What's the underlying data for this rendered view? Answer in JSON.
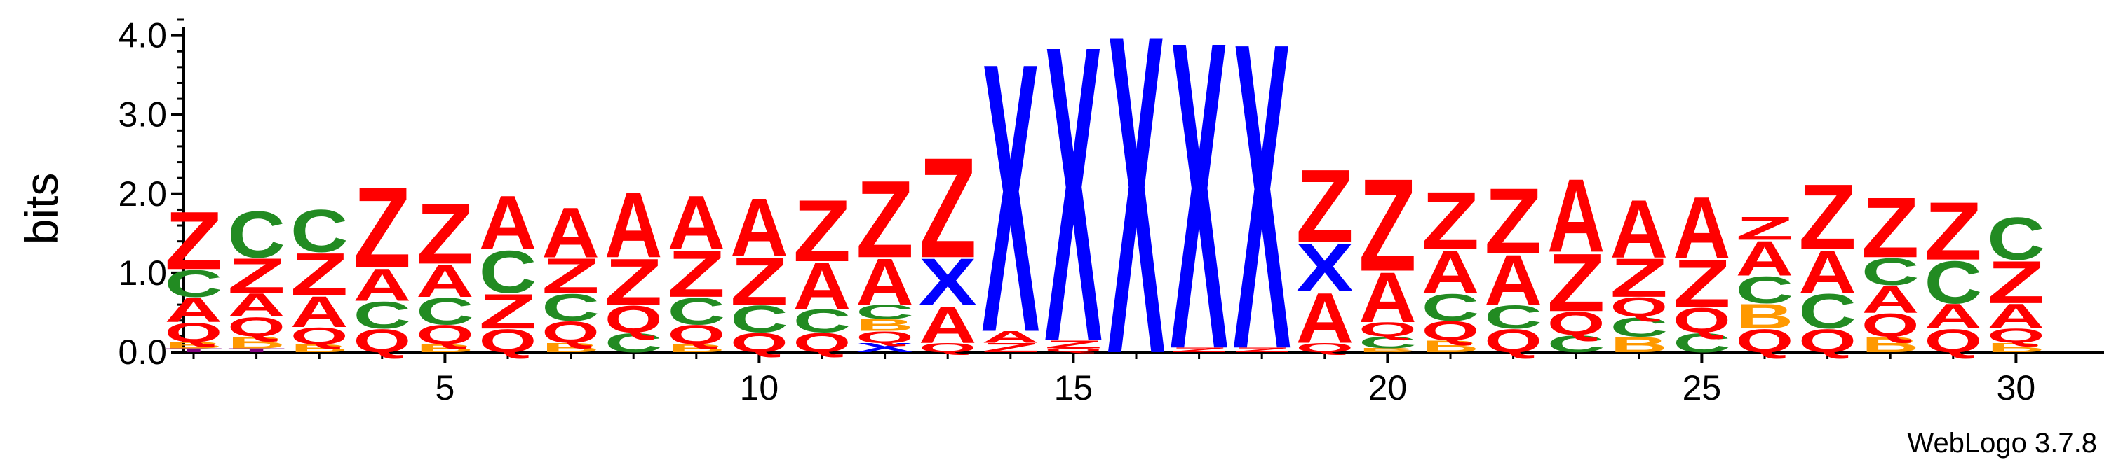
{
  "chart_data": {
    "type": "sequence-logo",
    "ylabel": "bits",
    "ylim": [
      0,
      4.2
    ],
    "y_ticks": [
      "0.0",
      "1.0",
      "2.0",
      "3.0",
      "4.0"
    ],
    "x_tick_positions": [
      5,
      10,
      15,
      20,
      25,
      30
    ],
    "x_tick_labels": [
      "5",
      "10",
      "15",
      "20",
      "25",
      "30"
    ],
    "footer": "WebLogo 3.7.8",
    "colors": {
      "Z": "#ff0000",
      "A": "#ff0000",
      "Q": "#ff0000",
      "C": "#228b22",
      "X": "#0000ff",
      "B": "#ff9900",
      "T": "#800080"
    },
    "positions": [
      {
        "pos": 1,
        "stack": [
          {
            "l": "T",
            "h": 0.05
          },
          {
            "l": "B",
            "h": 0.08
          },
          {
            "l": "Q",
            "h": 0.25
          },
          {
            "l": "A",
            "h": 0.32
          },
          {
            "l": "C",
            "h": 0.35
          },
          {
            "l": "Z",
            "h": 0.75
          }
        ]
      },
      {
        "pos": 2,
        "stack": [
          {
            "l": "T",
            "h": 0.05
          },
          {
            "l": "B",
            "h": 0.15
          },
          {
            "l": "Q",
            "h": 0.25
          },
          {
            "l": "A",
            "h": 0.3
          },
          {
            "l": "Z",
            "h": 0.45
          },
          {
            "l": "C",
            "h": 0.6
          }
        ]
      },
      {
        "pos": 3,
        "stack": [
          {
            "l": "B",
            "h": 0.1
          },
          {
            "l": "Q",
            "h": 0.22
          },
          {
            "l": "A",
            "h": 0.4
          },
          {
            "l": "Z",
            "h": 0.55
          },
          {
            "l": "C",
            "h": 0.55
          }
        ]
      },
      {
        "pos": 4,
        "stack": [
          {
            "l": "Q",
            "h": 0.3
          },
          {
            "l": "C",
            "h": 0.35
          },
          {
            "l": "A",
            "h": 0.42
          },
          {
            "l": "Z",
            "h": 1.05
          }
        ]
      },
      {
        "pos": 5,
        "stack": [
          {
            "l": "B",
            "h": 0.1
          },
          {
            "l": "Q",
            "h": 0.25
          },
          {
            "l": "C",
            "h": 0.35
          },
          {
            "l": "A",
            "h": 0.42
          },
          {
            "l": "Z",
            "h": 0.78
          }
        ]
      },
      {
        "pos": 6,
        "stack": [
          {
            "l": "Q",
            "h": 0.3
          },
          {
            "l": "Z",
            "h": 0.45
          },
          {
            "l": "C",
            "h": 0.55
          },
          {
            "l": "A",
            "h": 0.7
          }
        ]
      },
      {
        "pos": 7,
        "stack": [
          {
            "l": "B",
            "h": 0.12
          },
          {
            "l": "Q",
            "h": 0.28
          },
          {
            "l": "C",
            "h": 0.35
          },
          {
            "l": "Z",
            "h": 0.45
          },
          {
            "l": "A",
            "h": 0.65
          }
        ]
      },
      {
        "pos": 8,
        "stack": [
          {
            "l": "C",
            "h": 0.25
          },
          {
            "l": "Q",
            "h": 0.35
          },
          {
            "l": "Z",
            "h": 0.6
          },
          {
            "l": "A",
            "h": 0.85
          }
        ]
      },
      {
        "pos": 9,
        "stack": [
          {
            "l": "B",
            "h": 0.1
          },
          {
            "l": "Q",
            "h": 0.25
          },
          {
            "l": "C",
            "h": 0.35
          },
          {
            "l": "Z",
            "h": 0.6
          },
          {
            "l": "A",
            "h": 0.7
          }
        ]
      },
      {
        "pos": 10,
        "stack": [
          {
            "l": "Q",
            "h": 0.25
          },
          {
            "l": "C",
            "h": 0.35
          },
          {
            "l": "Z",
            "h": 0.62
          },
          {
            "l": "A",
            "h": 0.75
          }
        ]
      },
      {
        "pos": 11,
        "stack": [
          {
            "l": "Q",
            "h": 0.25
          },
          {
            "l": "C",
            "h": 0.3
          },
          {
            "l": "A",
            "h": 0.6
          },
          {
            "l": "Z",
            "h": 0.8
          }
        ]
      },
      {
        "pos": 12,
        "stack": [
          {
            "l": "X",
            "h": 0.12
          },
          {
            "l": "Q",
            "h": 0.15
          },
          {
            "l": "B",
            "h": 0.15
          },
          {
            "l": "C",
            "h": 0.18
          },
          {
            "l": "A",
            "h": 0.6
          },
          {
            "l": "Z",
            "h": 1.0
          }
        ]
      },
      {
        "pos": 13,
        "stack": [
          {
            "l": "Q",
            "h": 0.12
          },
          {
            "l": "A",
            "h": 0.48
          },
          {
            "l": "X",
            "h": 0.6
          },
          {
            "l": "Z",
            "h": 1.3
          }
        ]
      },
      {
        "pos": 14,
        "stack": [
          {
            "l": "Z",
            "h": 0.12
          },
          {
            "l": "A",
            "h": 0.15
          },
          {
            "l": "X",
            "h": 3.5
          }
        ]
      },
      {
        "pos": 15,
        "stack": [
          {
            "l": "Q",
            "h": 0.05
          },
          {
            "l": "Z",
            "h": 0.1
          },
          {
            "l": "X",
            "h": 3.85
          }
        ]
      },
      {
        "pos": 16,
        "stack": [
          {
            "l": "X",
            "h": 4.15
          }
        ]
      },
      {
        "pos": 17,
        "stack": [
          {
            "l": "Z",
            "h": 0.06
          },
          {
            "l": "X",
            "h": 4.0
          }
        ]
      },
      {
        "pos": 18,
        "stack": [
          {
            "l": "Z",
            "h": 0.06
          },
          {
            "l": "X",
            "h": 3.98
          }
        ]
      },
      {
        "pos": 19,
        "stack": [
          {
            "l": "Q",
            "h": 0.12
          },
          {
            "l": "A",
            "h": 0.65
          },
          {
            "l": "X",
            "h": 0.62
          },
          {
            "l": "Z",
            "h": 0.95
          }
        ]
      },
      {
        "pos": 20,
        "stack": [
          {
            "l": "B",
            "h": 0.05
          },
          {
            "l": "C",
            "h": 0.15
          },
          {
            "l": "Q",
            "h": 0.18
          },
          {
            "l": "A",
            "h": 0.65
          },
          {
            "l": "Z",
            "h": 1.2
          }
        ]
      },
      {
        "pos": 21,
        "stack": [
          {
            "l": "B",
            "h": 0.15
          },
          {
            "l": "Q",
            "h": 0.25
          },
          {
            "l": "C",
            "h": 0.35
          },
          {
            "l": "A",
            "h": 0.55
          },
          {
            "l": "Z",
            "h": 0.75
          }
        ]
      },
      {
        "pos": 22,
        "stack": [
          {
            "l": "Q",
            "h": 0.3
          },
          {
            "l": "C",
            "h": 0.3
          },
          {
            "l": "A",
            "h": 0.65
          },
          {
            "l": "Z",
            "h": 0.85
          }
        ]
      },
      {
        "pos": 23,
        "stack": [
          {
            "l": "C",
            "h": 0.22
          },
          {
            "l": "Q",
            "h": 0.3
          },
          {
            "l": "Z",
            "h": 0.75
          },
          {
            "l": "A",
            "h": 0.95
          }
        ]
      },
      {
        "pos": 24,
        "stack": [
          {
            "l": "B",
            "h": 0.2
          },
          {
            "l": "C",
            "h": 0.25
          },
          {
            "l": "Q",
            "h": 0.25
          },
          {
            "l": "Z",
            "h": 0.5
          },
          {
            "l": "A",
            "h": 0.75
          }
        ]
      },
      {
        "pos": 25,
        "stack": [
          {
            "l": "C",
            "h": 0.25
          },
          {
            "l": "Q",
            "h": 0.32
          },
          {
            "l": "Z",
            "h": 0.62
          },
          {
            "l": "A",
            "h": 0.8
          }
        ]
      },
      {
        "pos": 26,
        "stack": [
          {
            "l": "Q",
            "h": 0.3
          },
          {
            "l": "B",
            "h": 0.32
          },
          {
            "l": "C",
            "h": 0.35
          },
          {
            "l": "A",
            "h": 0.45
          },
          {
            "l": "Z",
            "h": 0.3
          }
        ]
      },
      {
        "pos": 27,
        "stack": [
          {
            "l": "Q",
            "h": 0.3
          },
          {
            "l": "C",
            "h": 0.45
          },
          {
            "l": "A",
            "h": 0.55
          },
          {
            "l": "Z",
            "h": 0.85
          }
        ]
      },
      {
        "pos": 28,
        "stack": [
          {
            "l": "B",
            "h": 0.2
          },
          {
            "l": "Q",
            "h": 0.3
          },
          {
            "l": "A",
            "h": 0.35
          },
          {
            "l": "C",
            "h": 0.35
          },
          {
            "l": "Z",
            "h": 0.78
          }
        ]
      },
      {
        "pos": 29,
        "stack": [
          {
            "l": "Q",
            "h": 0.3
          },
          {
            "l": "A",
            "h": 0.32
          },
          {
            "l": "C",
            "h": 0.55
          },
          {
            "l": "Z",
            "h": 0.75
          }
        ]
      },
      {
        "pos": 30,
        "stack": [
          {
            "l": "B",
            "h": 0.12
          },
          {
            "l": "Q",
            "h": 0.18
          },
          {
            "l": "A",
            "h": 0.32
          },
          {
            "l": "Z",
            "h": 0.55
          },
          {
            "l": "C",
            "h": 0.55
          }
        ]
      }
    ]
  }
}
